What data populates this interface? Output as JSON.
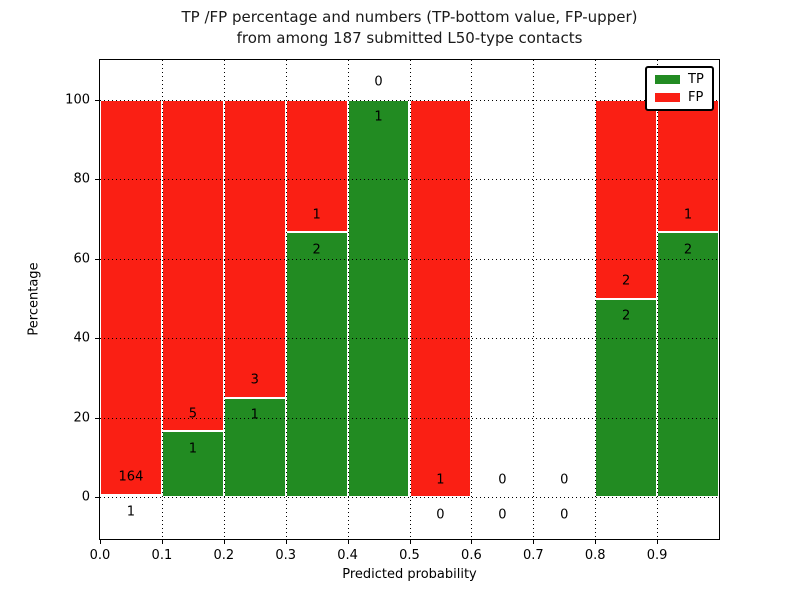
{
  "title": {
    "line1": "TP /FP percentage and numbers (TP-bottom value, FP-upper)",
    "line2": "from among 187 submitted L50-type contacts"
  },
  "chart_data": {
    "type": "bar",
    "stacked": true,
    "title": "TP /FP percentage and numbers (TP-bottom value, FP-upper) from among 187 submitted L50-type contacts",
    "xlabel": "Predicted probability",
    "ylabel": "Percentage",
    "xlim": [
      0.0,
      1.0
    ],
    "ylim": [
      -10.5,
      110
    ],
    "x_tick_labels": [
      "0.0",
      "0.1",
      "0.2",
      "0.3",
      "0.4",
      "0.5",
      "0.6",
      "0.7",
      "0.8",
      "0.9"
    ],
    "y_tick_values": [
      0,
      20,
      40,
      60,
      80,
      100
    ],
    "grid": "dotted",
    "total_contacts": 187,
    "bin_width": 0.1,
    "categories": [
      "0.0-0.1",
      "0.1-0.2",
      "0.2-0.3",
      "0.3-0.4",
      "0.4-0.5",
      "0.5-0.6",
      "0.6-0.7",
      "0.7-0.8",
      "0.8-0.9",
      "0.9-1.0"
    ],
    "series": [
      {
        "name": "TP",
        "counts": [
          1,
          1,
          1,
          2,
          1,
          0,
          0,
          0,
          2,
          2
        ]
      },
      {
        "name": "FP",
        "counts": [
          164,
          5,
          3,
          1,
          0,
          1,
          0,
          0,
          2,
          1
        ]
      }
    ],
    "tp_percent": [
      0.6,
      16.7,
      25.0,
      66.7,
      100.0,
      0.0,
      null,
      null,
      50.0,
      66.7
    ],
    "legend": {
      "position": "upper right",
      "entries": [
        {
          "label": "TP",
          "color": "#228b22"
        },
        {
          "label": "FP",
          "color": "#fa1f14"
        }
      ]
    }
  }
}
